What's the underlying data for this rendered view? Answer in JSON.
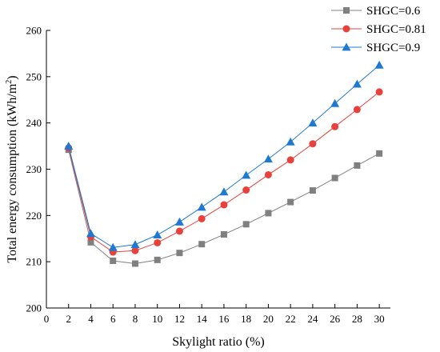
{
  "chart_data": {
    "type": "line",
    "xlabel": "Skylight ratio (%)",
    "ylabel_main": "Total energy consumption (kWh/m",
    "ylabel_sup": "2",
    "ylabel_tail": ")",
    "xlim": [
      0,
      31
    ],
    "ylim": [
      200,
      260
    ],
    "x_ticks": [
      0,
      2,
      4,
      6,
      8,
      10,
      12,
      14,
      16,
      18,
      20,
      22,
      24,
      26,
      28,
      30
    ],
    "y_ticks": [
      200,
      210,
      220,
      230,
      240,
      250,
      260
    ],
    "x": [
      2,
      4,
      6,
      8,
      10,
      12,
      14,
      16,
      18,
      20,
      22,
      24,
      26,
      28,
      30
    ],
    "legend_position": "top-right",
    "grid": false,
    "series": [
      {
        "name": "SHGC=0.6",
        "marker": "square",
        "color": "#808080",
        "values": [
          234.2,
          214.2,
          210.2,
          209.6,
          210.4,
          211.9,
          213.8,
          215.9,
          218.1,
          220.5,
          222.9,
          225.4,
          228.1,
          230.8,
          233.4
        ]
      },
      {
        "name": "SHGC=0.81",
        "marker": "circle",
        "color": "#e8413c",
        "values": [
          234.6,
          215.4,
          212.1,
          212.4,
          214.1,
          216.6,
          219.3,
          222.3,
          225.5,
          228.8,
          232.0,
          235.5,
          239.2,
          242.9,
          246.7
        ]
      },
      {
        "name": "SHGC=0.9",
        "marker": "triangle",
        "color": "#1f78d1",
        "values": [
          235.0,
          216.1,
          213.1,
          213.7,
          215.8,
          218.6,
          221.8,
          225.1,
          228.7,
          232.2,
          235.9,
          240.0,
          244.2,
          248.4,
          252.5
        ]
      }
    ]
  }
}
